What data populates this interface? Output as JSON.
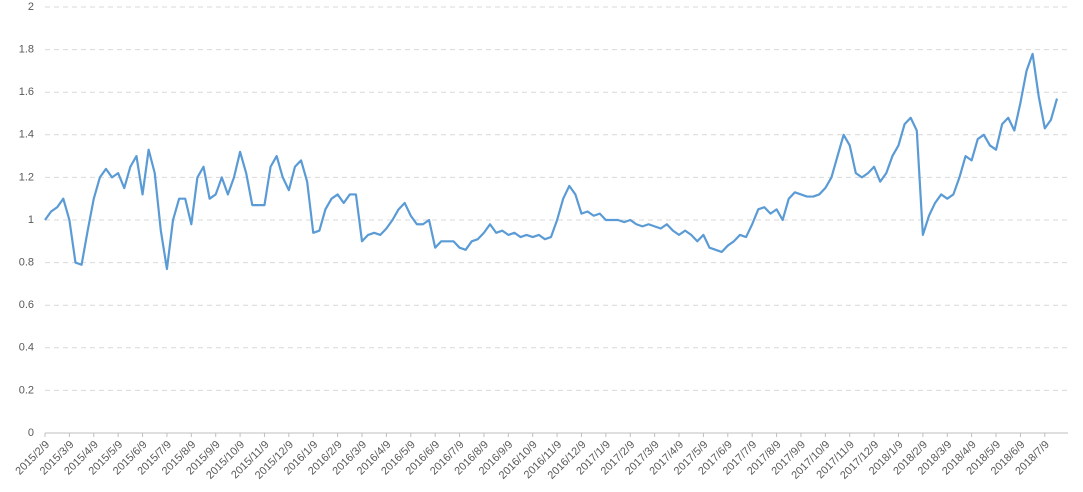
{
  "chart_data": {
    "type": "line",
    "categories": [
      "2015/2/9",
      null,
      null,
      null,
      "2015/3/9",
      null,
      null,
      null,
      "2015/4/9",
      null,
      null,
      null,
      "2015/5/9",
      null,
      null,
      null,
      "2015/6/9",
      null,
      null,
      null,
      "2015/7/9",
      null,
      null,
      null,
      "2015/8/9",
      null,
      null,
      null,
      "2015/9/9",
      null,
      null,
      null,
      "2015/10/9",
      null,
      null,
      null,
      "2015/11/9",
      null,
      null,
      null,
      "2015/12/9",
      null,
      null,
      null,
      "2016/1/9",
      null,
      null,
      null,
      "2016/2/9",
      null,
      null,
      null,
      "2016/3/9",
      null,
      null,
      null,
      "2016/4/9",
      null,
      null,
      null,
      "2016/5/9",
      null,
      null,
      null,
      "2016/6/9",
      null,
      null,
      null,
      "2016/7/9",
      null,
      null,
      null,
      "2016/8/9",
      null,
      null,
      null,
      "2016/9/9",
      null,
      null,
      null,
      "2016/10/9",
      null,
      null,
      null,
      "2016/11/9",
      null,
      null,
      null,
      "2016/12/9",
      null,
      null,
      null,
      "2017/1/9",
      null,
      null,
      null,
      "2017/2/9",
      null,
      null,
      null,
      "2017/3/9",
      null,
      null,
      null,
      "2017/4/9",
      null,
      null,
      null,
      "2017/5/9",
      null,
      null,
      null,
      "2017/6/9",
      null,
      null,
      null,
      "2017/7/9",
      null,
      null,
      null,
      "2017/8/9",
      null,
      null,
      null,
      "2017/9/9",
      null,
      null,
      null,
      "2017/10/9",
      null,
      null,
      null,
      "2017/11/9",
      null,
      null,
      null,
      "2017/12/9",
      null,
      null,
      null,
      "2018/1/9",
      null,
      null,
      null,
      "2018/2/9",
      null,
      null,
      null,
      "2018/3/9",
      null,
      null,
      null,
      "2018/4/9",
      null,
      null,
      null,
      "2018/5/9",
      null,
      null,
      null,
      "2018/6/9",
      null,
      null,
      null,
      "2018/7/9",
      null,
      null
    ],
    "values": [
      1.0,
      1.04,
      1.06,
      1.1,
      1.0,
      0.8,
      0.79,
      0.95,
      1.1,
      1.2,
      1.24,
      1.2,
      1.22,
      1.15,
      1.25,
      1.3,
      1.12,
      1.33,
      1.22,
      0.95,
      0.77,
      1.0,
      1.1,
      1.1,
      0.98,
      1.2,
      1.25,
      1.1,
      1.12,
      1.2,
      1.12,
      1.2,
      1.32,
      1.22,
      1.07,
      1.07,
      1.07,
      1.25,
      1.3,
      1.2,
      1.14,
      1.25,
      1.28,
      1.18,
      0.94,
      0.95,
      1.05,
      1.1,
      1.12,
      1.08,
      1.12,
      1.12,
      0.9,
      0.93,
      0.94,
      0.93,
      0.96,
      1.0,
      1.05,
      1.08,
      1.02,
      0.98,
      0.98,
      1.0,
      0.87,
      0.9,
      0.9,
      0.9,
      0.87,
      0.86,
      0.9,
      0.91,
      0.94,
      0.98,
      0.94,
      0.95,
      0.93,
      0.94,
      0.92,
      0.93,
      0.92,
      0.93,
      0.91,
      0.92,
      1.0,
      1.1,
      1.16,
      1.12,
      1.03,
      1.04,
      1.02,
      1.03,
      1.0,
      1.0,
      1.0,
      0.99,
      1.0,
      0.98,
      0.97,
      0.98,
      0.97,
      0.96,
      0.98,
      0.95,
      0.93,
      0.95,
      0.93,
      0.9,
      0.93,
      0.87,
      0.86,
      0.85,
      0.88,
      0.9,
      0.93,
      0.92,
      0.98,
      1.05,
      1.06,
      1.03,
      1.05,
      1.0,
      1.1,
      1.13,
      1.12,
      1.11,
      1.11,
      1.12,
      1.15,
      1.2,
      1.3,
      1.4,
      1.35,
      1.22,
      1.2,
      1.22,
      1.25,
      1.18,
      1.22,
      1.3,
      1.35,
      1.45,
      1.48,
      1.42,
      0.93,
      1.02,
      1.08,
      1.12,
      1.1,
      1.12,
      1.2,
      1.3,
      1.28,
      1.38,
      1.4,
      1.35,
      1.33,
      1.45,
      1.48,
      1.42,
      1.55,
      1.7,
      1.78,
      1.58,
      1.43,
      1.47,
      1.57
    ],
    "color": "#5b9bd5",
    "ylim": [
      0,
      2
    ],
    "yticks": [
      0,
      0.2,
      0.4,
      0.6,
      0.8,
      1,
      1.2,
      1.4,
      1.6,
      1.8,
      2
    ],
    "grid": true
  }
}
